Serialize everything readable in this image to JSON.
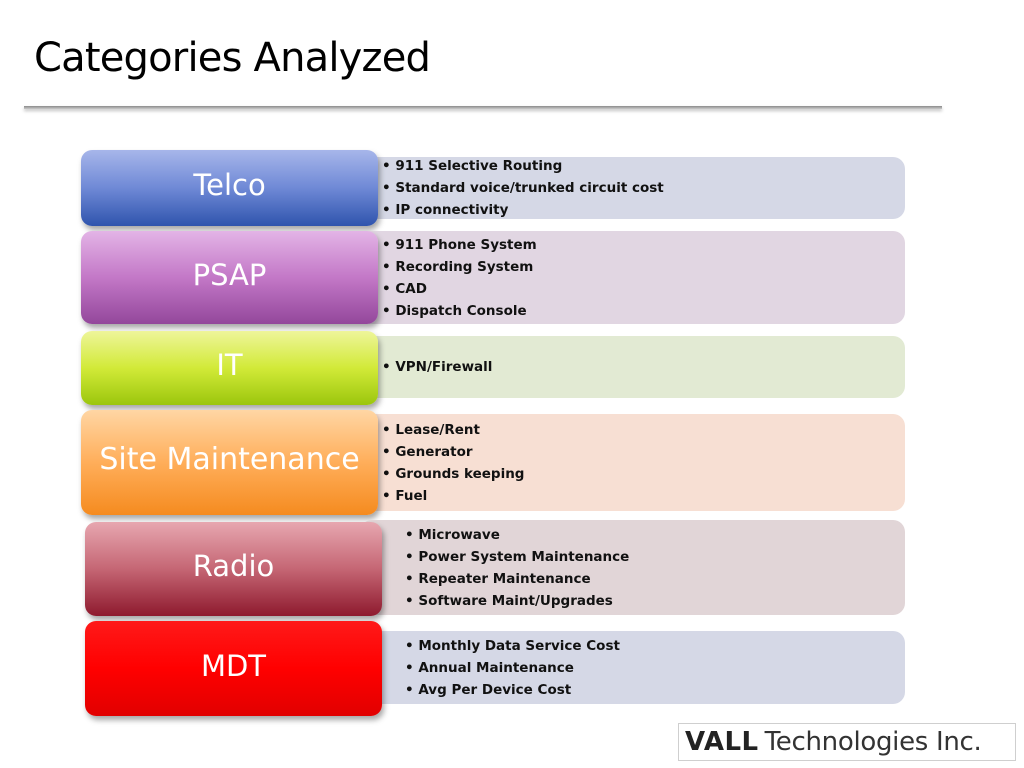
{
  "slide": {
    "title": "Categories Analyzed"
  },
  "categories": [
    {
      "label": "Telco",
      "items": [
        "911 Selective Routing",
        "Standard voice/trunked circuit cost",
        "IP connectivity"
      ]
    },
    {
      "label": "PSAP",
      "items": [
        "911 Phone System",
        "Recording System",
        "CAD",
        "Dispatch Console"
      ]
    },
    {
      "label": "IT",
      "items": [
        "VPN/Firewall"
      ]
    },
    {
      "label": "Site Maintenance",
      "items": [
        "Lease/Rent",
        "Generator",
        "Grounds keeping",
        "Fuel"
      ]
    },
    {
      "label": "Radio",
      "items": [
        "Microwave",
        "Power System Maintenance",
        "Repeater Maintenance",
        "Software Maint/Upgrades"
      ]
    },
    {
      "label": "MDT",
      "items": [
        "Monthly Data Service Cost",
        "Annual Maintenance",
        "Avg Per Device Cost"
      ]
    }
  ],
  "logo": {
    "brand": "VALL",
    "rest": "Technologies Inc."
  },
  "colors": {
    "telco": "#2f54ad",
    "psap": "#93479b",
    "it": "#9bc60d",
    "site_maintenance": "#f58b1f",
    "radio": "#8e1a2e",
    "mdt": "#ff0000",
    "telco_panel": "#d5d8e6",
    "psap_panel": "#e1d6e2",
    "it_panel": "#e2ead3",
    "site_panel": "#f7dfd3",
    "radio_panel": "#e1d5d7",
    "mdt_panel": "#d5d8e6"
  }
}
